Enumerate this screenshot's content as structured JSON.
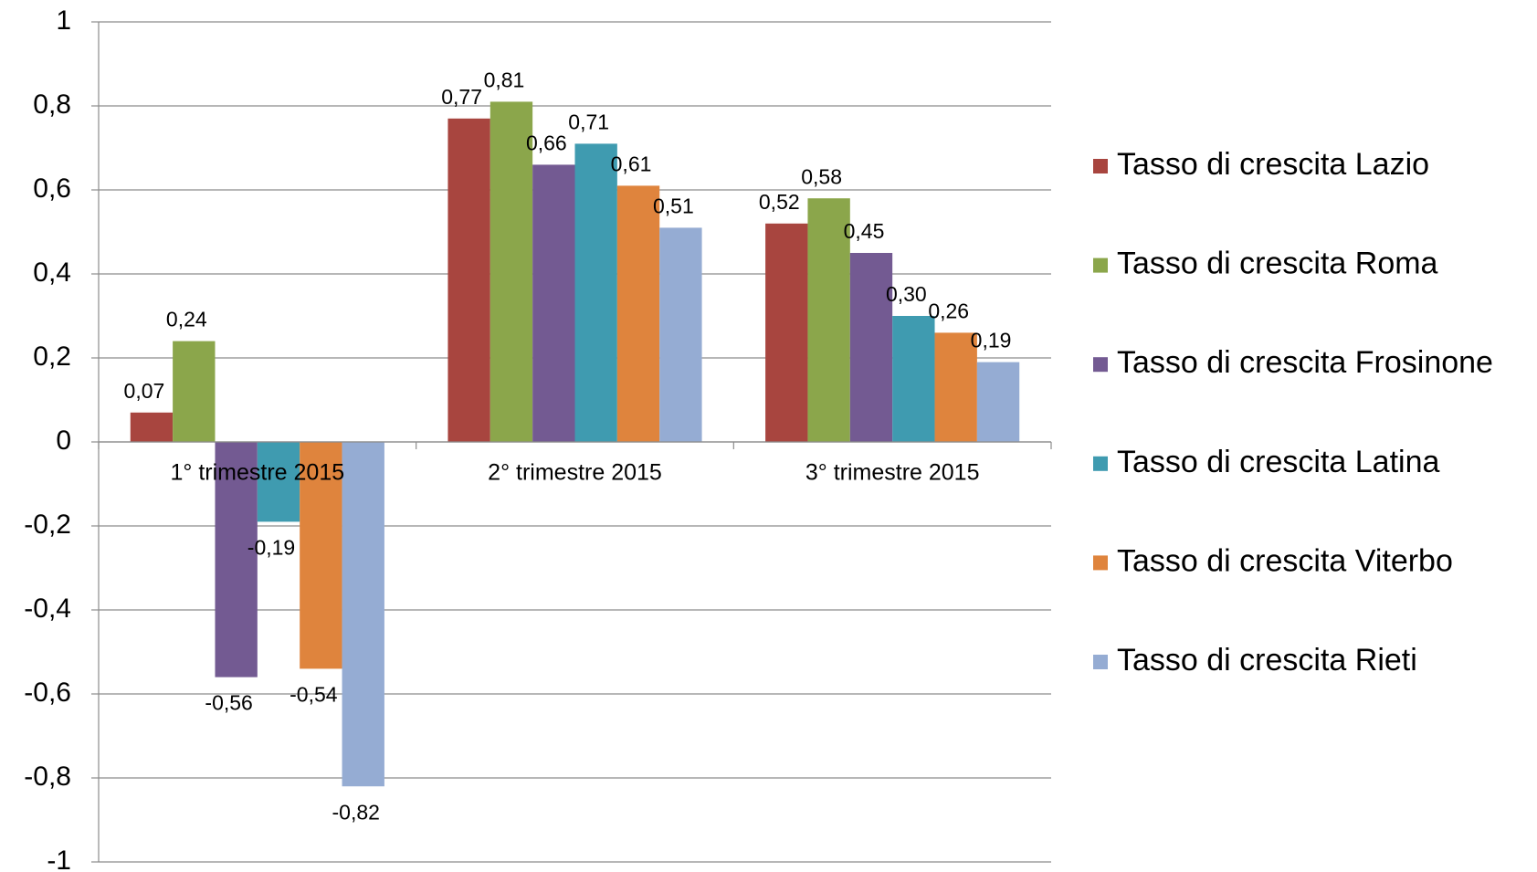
{
  "chart_data": {
    "type": "bar",
    "categories": [
      "1° trimestre 2015",
      "2° trimestre 2015",
      "3° trimestre 2015"
    ],
    "series": [
      {
        "name": "Tasso di crescita Lazio",
        "color": "#a8453f",
        "values": [
          0.07,
          0.77,
          0.52
        ],
        "value_labels": [
          "0,07",
          "0,77",
          "0,52"
        ]
      },
      {
        "name": "Tasso di crescita Roma",
        "color": "#8ba64b",
        "values": [
          0.24,
          0.81,
          0.58
        ],
        "value_labels": [
          "0,24",
          "0,81",
          "0,58"
        ]
      },
      {
        "name": "Tasso di crescita Frosinone",
        "color": "#735a92",
        "values": [
          -0.56,
          0.66,
          0.45
        ],
        "value_labels": [
          "-0,56",
          "0,66",
          "0,45"
        ]
      },
      {
        "name": "Tasso di crescita Latina",
        "color": "#3f9bb0",
        "values": [
          -0.19,
          0.71,
          0.3
        ],
        "value_labels": [
          "-0,19",
          "0,71",
          "0,30"
        ]
      },
      {
        "name": "Tasso di crescita Viterbo",
        "color": "#df843d",
        "values": [
          -0.54,
          0.61,
          0.26
        ],
        "value_labels": [
          "-0,54",
          "0,61",
          "0,26"
        ]
      },
      {
        "name": "Tasso di crescita Rieti",
        "color": "#95acd3",
        "values": [
          -0.82,
          0.51,
          0.19
        ],
        "value_labels": [
          "-0,82",
          "0,51",
          "0,19"
        ]
      }
    ],
    "ylim": [
      -1,
      1
    ],
    "yticks": [
      -1,
      {
        "value": -0.8,
        "label": "-0,8"
      },
      {
        "value": -0.6,
        "label": "-0,6"
      },
      {
        "value": -0.4,
        "label": "-0,4"
      },
      {
        "value": -0.2,
        "label": "-0,2"
      },
      0,
      {
        "value": 0.2,
        "label": "0,2"
      },
      {
        "value": 0.4,
        "label": "0,4"
      },
      {
        "value": 0.6,
        "label": "0,6"
      },
      {
        "value": 0.8,
        "label": "0,8"
      },
      1
    ],
    "grid": true,
    "legend": "right"
  }
}
